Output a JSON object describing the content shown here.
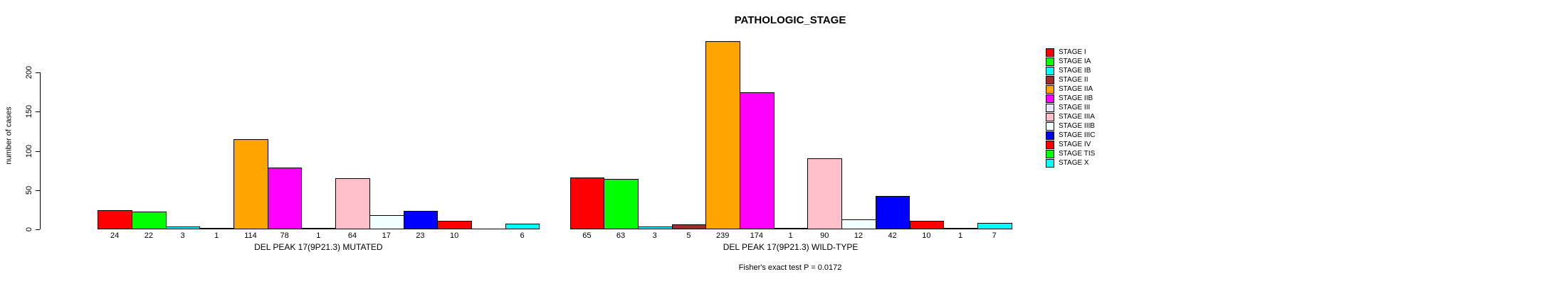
{
  "chart_data": {
    "type": "bar",
    "title": "PATHOLOGIC_STAGE",
    "ylabel": "number of cases",
    "xlabel": "",
    "ylim": [
      0,
      200
    ],
    "yticks": [
      0,
      50,
      100,
      150,
      200
    ],
    "grid": false,
    "legend_position": "right",
    "categories": [
      "STAGE I",
      "STAGE IA",
      "STAGE IB",
      "STAGE II",
      "STAGE IIA",
      "STAGE IIB",
      "STAGE III",
      "STAGE IIIA",
      "STAGE IIIB",
      "STAGE IIIC",
      "STAGE IV",
      "STAGE TIS",
      "STAGE X"
    ],
    "colors": [
      "#FF0000",
      "#00FF00",
      "#00FFFF",
      "#A52A2A",
      "#FFA500",
      "#FF00FF",
      "#E6E6FA",
      "#FFC0CB",
      "#F0FFFF",
      "#0000FF",
      "#FF0000",
      "#00FF00",
      "#00FFFF"
    ],
    "series": [
      {
        "name": "DEL PEAK 17(9P21.3) MUTATED",
        "values": [
          24,
          22,
          3,
          1,
          114,
          78,
          1,
          64,
          17,
          23,
          10,
          null,
          6
        ]
      },
      {
        "name": "DEL PEAK 17(9P21.3) WILD-TYPE",
        "values": [
          65,
          63,
          3,
          5,
          239,
          174,
          1,
          90,
          12,
          42,
          10,
          1,
          7
        ]
      }
    ],
    "annotation": "Fisher's exact test P = 0.0172",
    "bar_border_color": "#000000",
    "background_color": "#FFFFFF"
  }
}
